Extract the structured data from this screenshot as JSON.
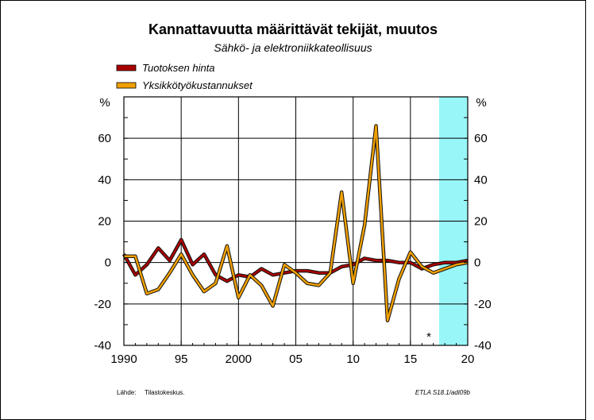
{
  "chart_data": {
    "type": "line",
    "title": "Kannattavuutta määrittävät tekijät, muutos",
    "subtitle": "Sähkö- ja elektroniikkateollisuus",
    "ylabel_left": "%",
    "ylabel_right": "%",
    "xlim": [
      1990,
      2020
    ],
    "ylim": [
      -40,
      80
    ],
    "yticks": [
      -40,
      -20,
      0,
      20,
      40,
      60
    ],
    "ytick_labels": [
      "-40",
      "-20",
      "0",
      "20",
      "40",
      "60"
    ],
    "xticks": [
      1990,
      1995,
      2000,
      2005,
      2010,
      2015,
      2020
    ],
    "xtick_labels": [
      "1990",
      "95",
      "2000",
      "05",
      "10",
      "15",
      "20"
    ],
    "forecast_start": 2017.5,
    "forecast_marker": "*",
    "grid": true,
    "legend_position": "top-left",
    "series": [
      {
        "name": "Tuotoksen hinta",
        "color": "#aa0000",
        "x": [
          1990,
          1991,
          1992,
          1993,
          1994,
          1995,
          1996,
          1997,
          1998,
          1999,
          2000,
          2001,
          2002,
          2003,
          2004,
          2005,
          2006,
          2007,
          2008,
          2009,
          2010,
          2011,
          2012,
          2013,
          2014,
          2015,
          2016,
          2017,
          2018,
          2019,
          2020
        ],
        "values": [
          4,
          -6,
          -1,
          7,
          1,
          11,
          -1,
          4,
          -6,
          -9,
          -6,
          -7,
          -3,
          -6,
          -5,
          -4,
          -4,
          -5,
          -5,
          -2,
          -1,
          2,
          1,
          1,
          0,
          0,
          -3,
          -1,
          0,
          0,
          1
        ]
      },
      {
        "name": "Yksikkötyökustannukset",
        "color": "#f0a000",
        "x": [
          1990,
          1991,
          1992,
          1993,
          1994,
          1995,
          1996,
          1997,
          1998,
          1999,
          2000,
          2001,
          2002,
          2003,
          2004,
          2005,
          2006,
          2007,
          2008,
          2009,
          2010,
          2011,
          2012,
          2013,
          2014,
          2015,
          2016,
          2017,
          2018,
          2019,
          2020
        ],
        "values": [
          3,
          3,
          -15,
          -13,
          -5,
          4,
          -6,
          -14,
          -10,
          8,
          -17,
          -6,
          -11,
          -21,
          -1,
          -5,
          -10,
          -11,
          -5,
          34,
          -10,
          18,
          66,
          -28,
          -8,
          5,
          -2,
          -5,
          -3,
          -1,
          0
        ]
      }
    ]
  },
  "footer": {
    "source_label": "Lähde:",
    "source_value": "Tilastokeskus.",
    "code": "ETLA S18.1/adi09b"
  }
}
